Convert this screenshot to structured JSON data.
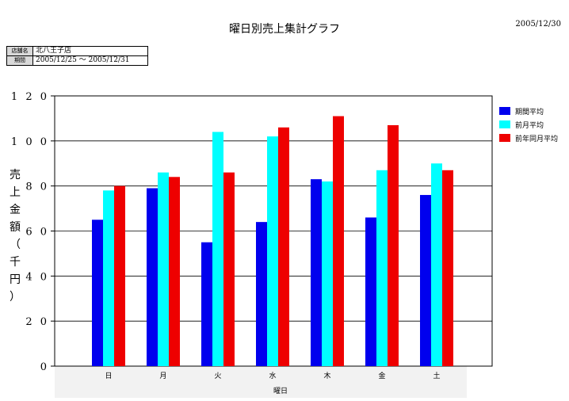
{
  "report": {
    "title": "曜日別売上集計グラフ",
    "date": "2005/12/30",
    "store_label": "店舗名",
    "store_value": "北八王子店",
    "period_label": "期間",
    "period_value": "2005/12/25 〜 2005/12/31"
  },
  "colors": {
    "期間平均": "#0000ee",
    "前月平均": "#00ffff",
    "前年同月平均": "#ee0000"
  },
  "chart_data": {
    "type": "bar",
    "title": "曜日別売上集計グラフ",
    "xlabel": "曜日",
    "ylabel": "売上金額（千円）",
    "ylim": [
      0,
      120
    ],
    "yticks": [
      0,
      20,
      40,
      60,
      80,
      100,
      120
    ],
    "ytick_labels": [
      "0",
      "2 0",
      "4 0",
      "6 0",
      "8 0",
      "1 0 0",
      "1 2 0"
    ],
    "grid": true,
    "legend_position": "right",
    "categories": [
      "日",
      "月",
      "火",
      "水",
      "木",
      "金",
      "土"
    ],
    "series": [
      {
        "name": "期間平均",
        "values": [
          65,
          79,
          55,
          64,
          83,
          66,
          76
        ]
      },
      {
        "name": "前月平均",
        "values": [
          78,
          86,
          104,
          102,
          82,
          87,
          90
        ]
      },
      {
        "name": "前年同月平均",
        "values": [
          80,
          84,
          86,
          106,
          111,
          107,
          87
        ]
      }
    ]
  }
}
